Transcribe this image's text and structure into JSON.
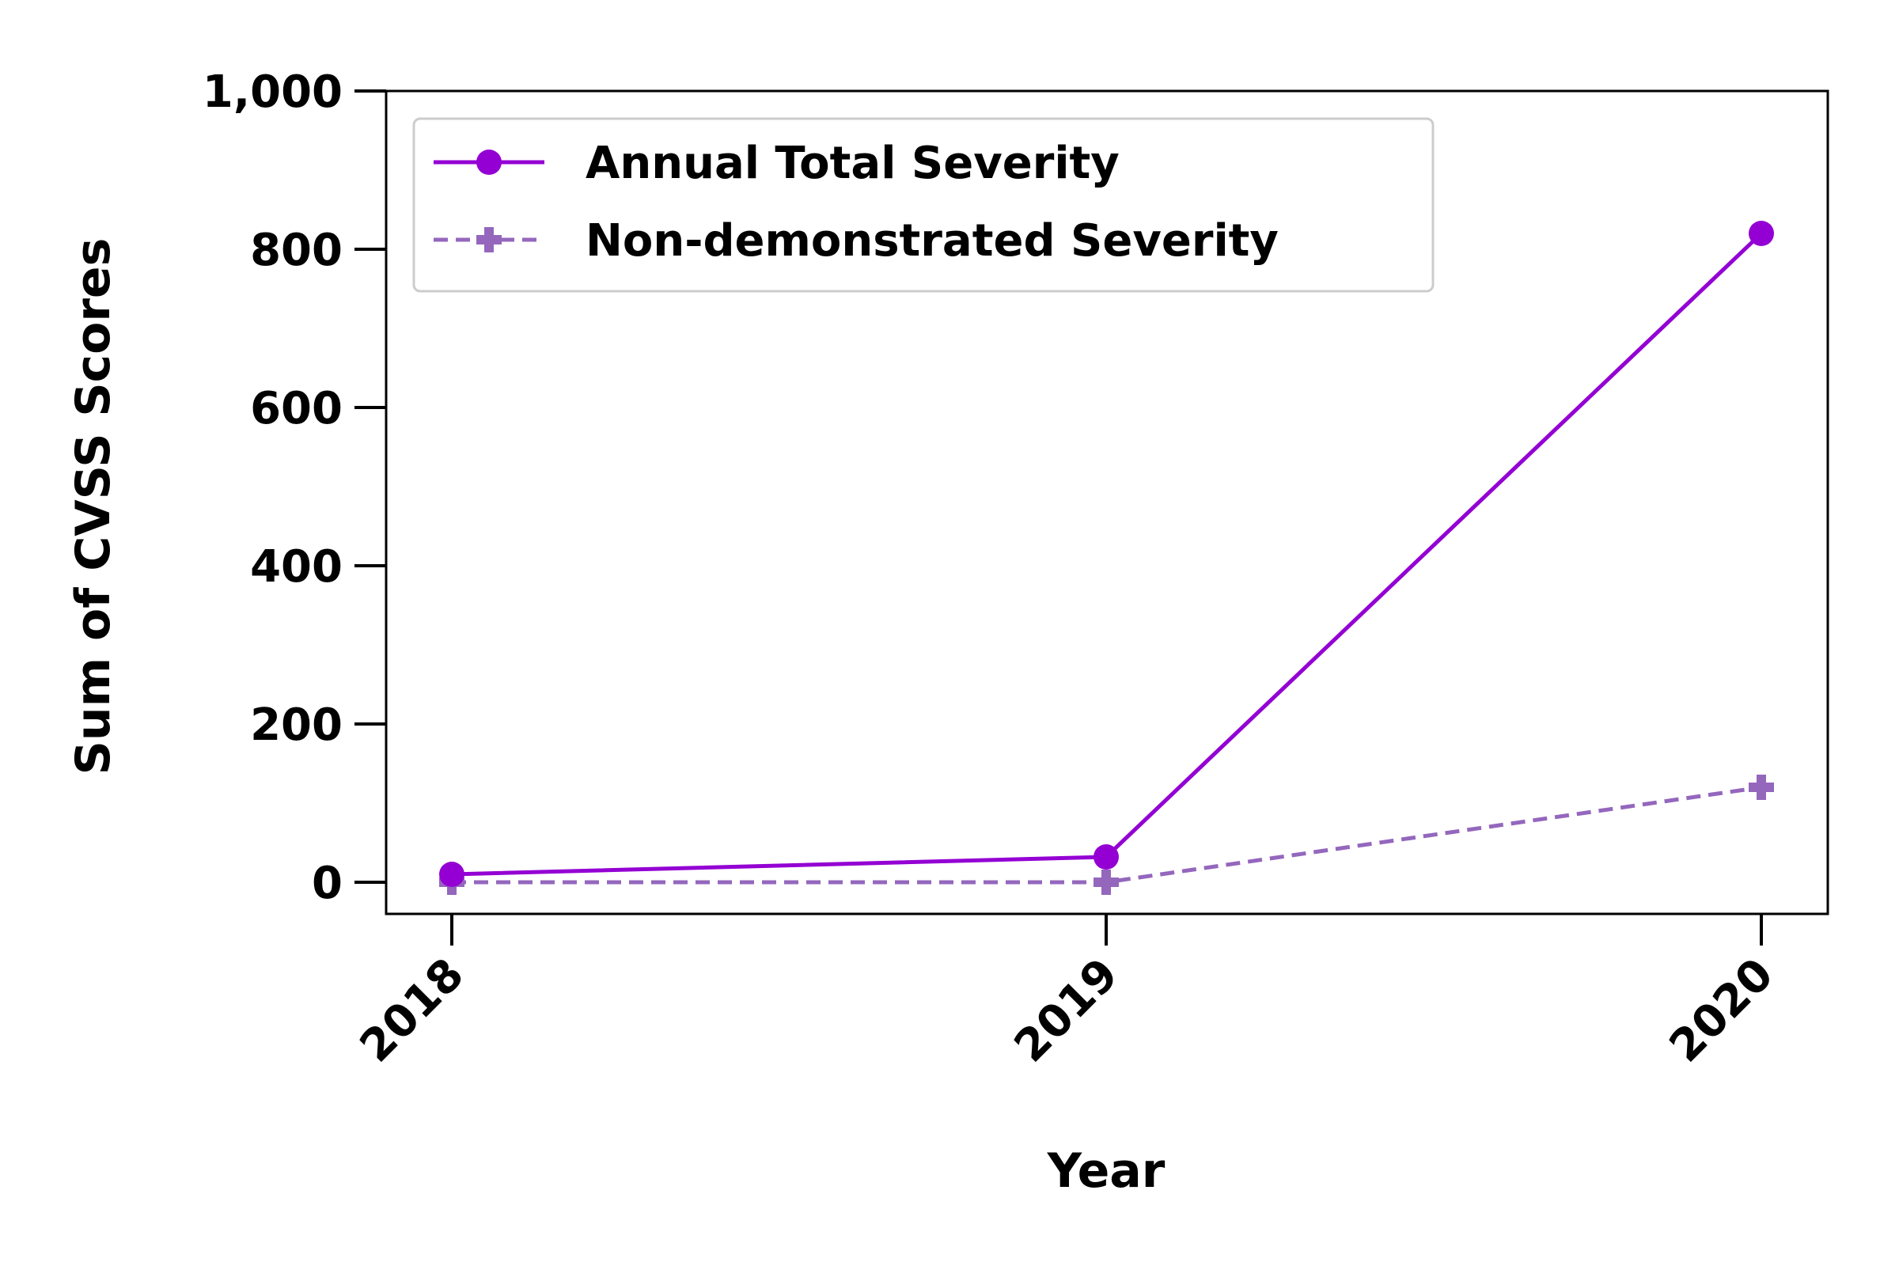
{
  "chart_data": {
    "type": "line",
    "title": "",
    "xlabel": "Year",
    "ylabel": "Sum of CVSS Scores",
    "x": [
      "2018",
      "2019",
      "2020"
    ],
    "y_ticks": [
      "0",
      "200",
      "400",
      "600",
      "800",
      "1,000"
    ],
    "ylim": [
      -40,
      1000
    ],
    "grid": false,
    "legend_position": "top-left",
    "series": [
      {
        "name": "Annual Total Severity",
        "values": [
          10,
          32,
          820
        ],
        "color": "#9400D3",
        "line_style": "solid",
        "marker": "circle"
      },
      {
        "name": "Non-demonstrated Severity",
        "values": [
          0,
          0,
          120
        ],
        "color": "#9467BD",
        "line_style": "dashed",
        "marker": "plus"
      }
    ]
  }
}
